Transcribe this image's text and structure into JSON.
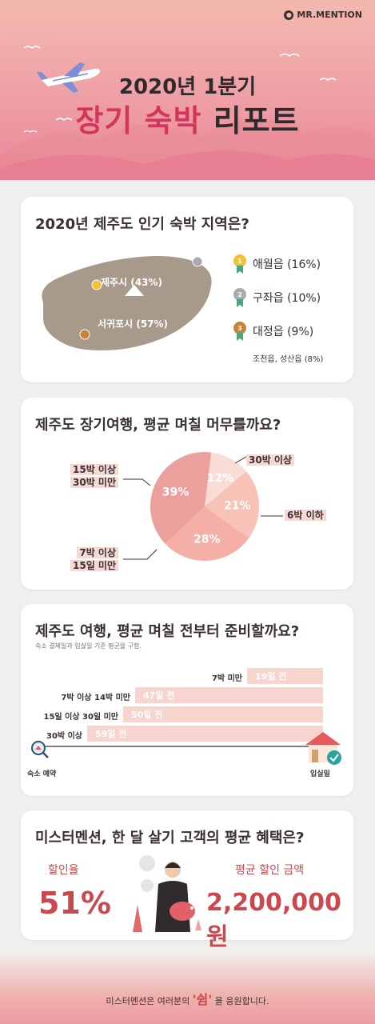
{
  "header": {
    "brand": "MR.MENTION",
    "title_line1": "2020년 1분기",
    "title_line2_highlight": "장기 숙박",
    "title_line2_rest": " 리포트"
  },
  "section1": {
    "title": "2020년 제주도 인기 숙박 지역은?",
    "map_labels": [
      "제주시 (43%)",
      "서귀포시 (57%)"
    ],
    "ranks": [
      {
        "medal": "1",
        "label": "애월읍 (16%)",
        "color": "#f1c232"
      },
      {
        "medal": "2",
        "label": "구좌읍 (10%)",
        "color": "#a9a9b0"
      },
      {
        "medal": "3",
        "label": "대정읍 (9%)",
        "color": "#c7823e"
      }
    ],
    "others": "조천읍, 성산읍 (8%)"
  },
  "section2": {
    "title": "제주도 장기여행, 평균 며칠 머무를까요?",
    "slices": [
      {
        "pct": "12%",
        "value": 12,
        "color": "#fadcd6"
      },
      {
        "pct": "21%",
        "value": 21,
        "color": "#f7c3b8"
      },
      {
        "pct": "28%",
        "value": 28,
        "color": "#f4b0a6"
      },
      {
        "pct": "39%",
        "value": 39,
        "color": "#eca09e"
      }
    ],
    "labels": {
      "l30": "30박 이상",
      "l6": "6박 이하",
      "l15a": "15박 이상",
      "l15b": "30박 미만",
      "l7a": "7박 이상",
      "l7b": "15일 미만"
    }
  },
  "section3": {
    "title": "제주도 여행, 평균 며칠 전부터 준비할까요?",
    "subtitle": "숙소 결제일과 입실일 기준 평균을 구함.",
    "bars": [
      {
        "label": "7박 미만",
        "value_label": "19일 전",
        "value": 19
      },
      {
        "label": "7박 이상 14박 미만",
        "value_label": "47일 전",
        "value": 47
      },
      {
        "label": "15일 이상 30일 미만",
        "value_label": "50일 전",
        "value": 50
      },
      {
        "label": "30박 이상",
        "value_label": "59일 전",
        "value": 59
      }
    ],
    "start_label": "숙소 예약",
    "end_label": "입실일"
  },
  "section4": {
    "title": "미스터멘션, 한 달 살기 고객의 평균 혜택은?",
    "discount_label": "할인율",
    "discount_value": "51%",
    "amount_label": "평균 할인 금액",
    "amount_value": "2,200,000원"
  },
  "footer": {
    "before": "미스터멘션은 여러분의 ",
    "highlight": "'쉼'",
    "after": " 을 응원합니다."
  }
}
